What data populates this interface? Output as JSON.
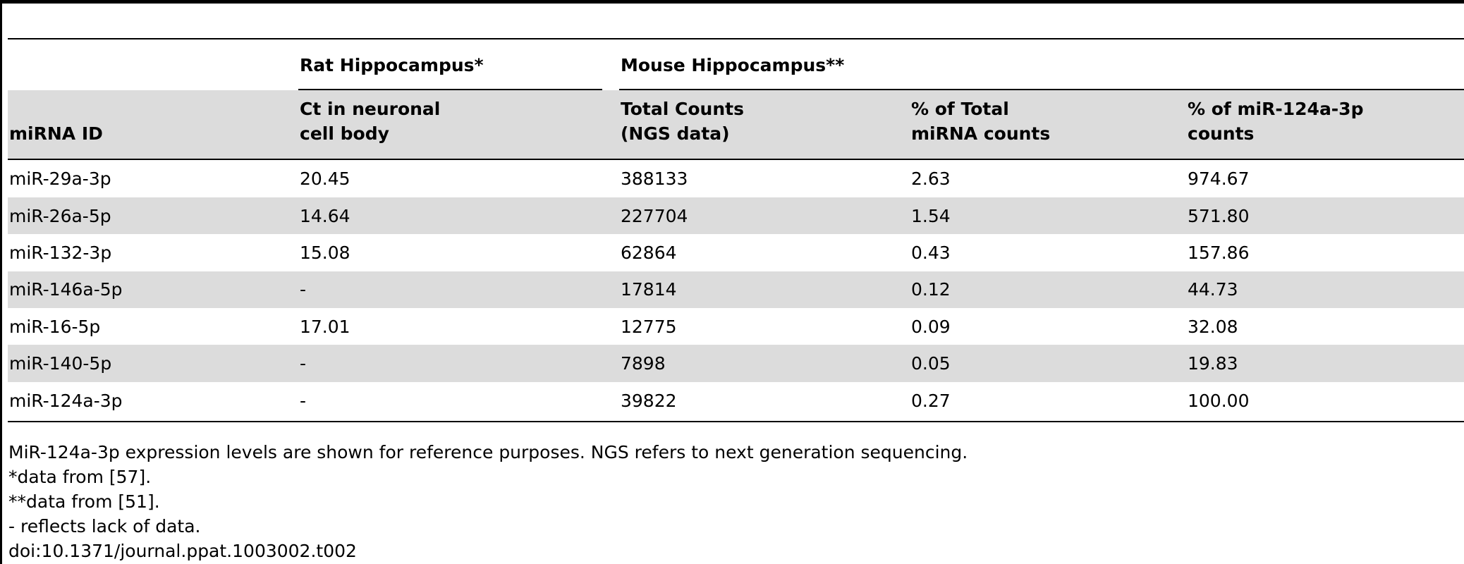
{
  "table": {
    "group_headers": {
      "rat": "Rat Hippocampus*",
      "mouse": "Mouse Hippocampus**"
    },
    "columns": {
      "mirna_id": "miRNA ID",
      "ct_line1": "Ct in neuronal",
      "ct_line2": "cell body",
      "total_line1": "Total Counts",
      "total_line2": "(NGS data)",
      "pct_total_line1": "% of Total",
      "pct_total_line2": "miRNA counts",
      "pct_124_line1": "% of miR-124a-3p",
      "pct_124_line2": "counts"
    },
    "rows": [
      [
        "miR-29a-3p",
        "20.45",
        "388133",
        "2.63",
        "974.67"
      ],
      [
        "miR-26a-5p",
        "14.64",
        "227704",
        "1.54",
        "571.80"
      ],
      [
        "miR-132-3p",
        "15.08",
        "62864",
        "0.43",
        "157.86"
      ],
      [
        "miR-146a-5p",
        "-",
        "17814",
        "0.12",
        "44.73"
      ],
      [
        "miR-16-5p",
        "17.01",
        "12775",
        "0.09",
        "32.08"
      ],
      [
        "miR-140-5p",
        "-",
        "7898",
        "0.05",
        "19.83"
      ],
      [
        "miR-124a-3p",
        "-",
        "39822",
        "0.27",
        "100.00"
      ]
    ]
  },
  "footnotes": [
    "MiR-124a-3p expression levels are shown for reference purposes. NGS refers to next generation sequencing.",
    "*data from [57].",
    "**data from [51].",
    "- reflects lack of data.",
    "doi:10.1371/journal.ppat.1003002.t002"
  ]
}
